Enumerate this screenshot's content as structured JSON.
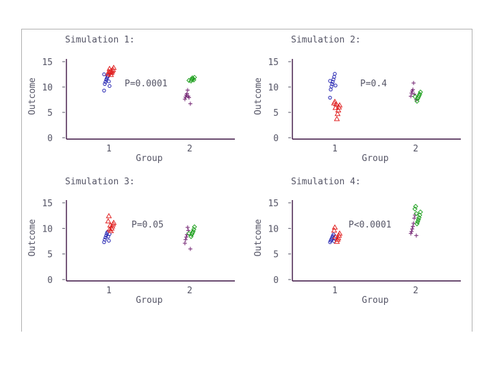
{
  "chart_data": [
    {
      "type": "scatter",
      "title": "Simulation 1:",
      "xlabel": "Group",
      "ylabel": "Outcome",
      "annotation": "P=0.0001",
      "xticks": [
        "1",
        "2"
      ],
      "yticks": [
        "0",
        "5",
        "10",
        "15"
      ],
      "ylim": [
        0,
        15
      ],
      "series": [
        {
          "group": 1,
          "marker": "circle",
          "color": "#2020b0",
          "y": [
            9.3,
            10.6,
            11.0,
            11.4,
            11.7,
            12.0,
            12.2,
            11.1,
            10.2,
            12.5
          ]
        },
        {
          "group": 1,
          "marker": "triangle",
          "color": "#e02020",
          "y": [
            12.4,
            12.8,
            13.1,
            13.4,
            13.8,
            12.6,
            13.0,
            13.6,
            12.9,
            13.2
          ]
        },
        {
          "group": 2,
          "marker": "plus",
          "color": "#702070",
          "y": [
            6.7,
            7.6,
            8.0,
            8.4,
            8.7,
            9.4,
            8.2,
            7.9
          ]
        },
        {
          "group": 2,
          "marker": "diamond",
          "color": "#20a020",
          "y": [
            11.2,
            11.5,
            11.8,
            11.6,
            11.4,
            11.9,
            11.3
          ]
        }
      ]
    },
    {
      "type": "scatter",
      "title": "Simulation 2:",
      "xlabel": "Group",
      "ylabel": "Outcome",
      "annotation": "P=0.4",
      "xticks": [
        "1",
        "2"
      ],
      "yticks": [
        "0",
        "5",
        "10",
        "15"
      ],
      "ylim": [
        0,
        15
      ],
      "series": [
        {
          "group": 1,
          "marker": "circle",
          "color": "#2020b0",
          "y": [
            7.9,
            9.5,
            10.1,
            10.6,
            11.0,
            11.5,
            12.0,
            12.6,
            10.3,
            11.2
          ]
        },
        {
          "group": 1,
          "marker": "triangle",
          "color": "#e02020",
          "y": [
            3.7,
            4.7,
            5.4,
            6.0,
            6.4,
            6.8,
            7.1,
            5.9,
            6.6
          ]
        },
        {
          "group": 2,
          "marker": "plus",
          "color": "#702070",
          "y": [
            7.5,
            8.2,
            8.8,
            9.2,
            9.5,
            10.8,
            8.6
          ]
        },
        {
          "group": 2,
          "marker": "diamond",
          "color": "#20a020",
          "y": [
            7.2,
            7.7,
            8.0,
            8.3,
            8.6,
            9.0,
            8.1
          ]
        }
      ]
    },
    {
      "type": "scatter",
      "title": "Simulation 3:",
      "xlabel": "Group",
      "ylabel": "Outcome",
      "annotation": "P=0.05",
      "xticks": [
        "1",
        "2"
      ],
      "yticks": [
        "0",
        "5",
        "10",
        "15"
      ],
      "ylim": [
        0,
        15
      ],
      "series": [
        {
          "group": 1,
          "marker": "circle",
          "color": "#2020b0",
          "y": [
            7.3,
            7.8,
            8.2,
            8.6,
            9.0,
            9.3,
            8.4,
            7.6,
            8.9
          ]
        },
        {
          "group": 1,
          "marker": "triangle",
          "color": "#e02020",
          "y": [
            9.5,
            10.0,
            10.4,
            10.8,
            11.1,
            11.4,
            12.4,
            9.8,
            10.6
          ]
        },
        {
          "group": 2,
          "marker": "plus",
          "color": "#702070",
          "y": [
            6.0,
            7.1,
            7.8,
            8.3,
            8.8,
            10.2,
            9.6
          ]
        },
        {
          "group": 2,
          "marker": "diamond",
          "color": "#20a020",
          "y": [
            8.4,
            8.8,
            9.1,
            9.4,
            9.8,
            10.3,
            9.0
          ]
        }
      ]
    },
    {
      "type": "scatter",
      "title": "Simulation 4:",
      "xlabel": "Group",
      "ylabel": "Outcome",
      "annotation": "P<0.0001",
      "xticks": [
        "1",
        "2"
      ],
      "yticks": [
        "0",
        "5",
        "10",
        "15"
      ],
      "ylim": [
        0,
        15
      ],
      "series": [
        {
          "group": 1,
          "marker": "circle",
          "color": "#2020b0",
          "y": [
            7.3,
            7.6,
            7.9,
            8.2,
            8.5,
            8.8,
            7.5,
            8.0
          ]
        },
        {
          "group": 1,
          "marker": "triangle",
          "color": "#e02020",
          "y": [
            7.4,
            7.8,
            8.1,
            8.6,
            9.0,
            9.6,
            10.2,
            8.3
          ]
        },
        {
          "group": 2,
          "marker": "plus",
          "color": "#702070",
          "y": [
            8.6,
            9.0,
            9.4,
            9.9,
            10.4,
            11.0,
            12.0,
            12.6
          ]
        },
        {
          "group": 2,
          "marker": "diamond",
          "color": "#20a020",
          "y": [
            10.9,
            11.3,
            11.7,
            12.1,
            12.6,
            13.2,
            13.8,
            14.3,
            12.9
          ]
        }
      ]
    }
  ]
}
